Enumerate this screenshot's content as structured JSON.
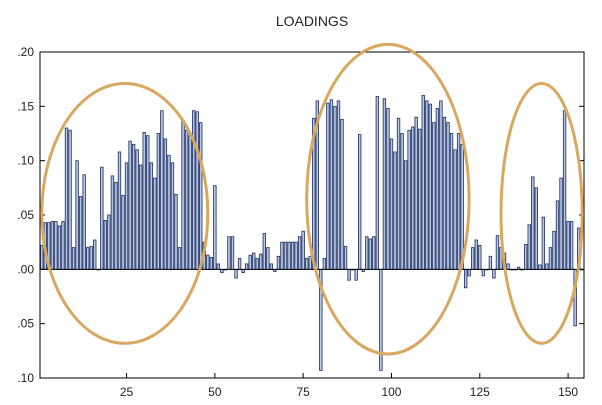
{
  "chart_data": {
    "type": "bar",
    "title": "LOADINGS",
    "xlabel": "",
    "ylabel": "",
    "xlim": [
      1,
      154
    ],
    "ylim": [
      -0.1,
      0.2
    ],
    "xticks": [
      25,
      50,
      75,
      100,
      125,
      150
    ],
    "xtick_labels": [
      "25",
      "50",
      "75",
      "100",
      "125",
      "150"
    ],
    "yticks": [
      -0.1,
      -0.05,
      0.0,
      0.05,
      0.1,
      0.15,
      0.2
    ],
    "ytick_labels": [
      ".10",
      ".05",
      ".00",
      ".05",
      ".10",
      ".15",
      ".20"
    ],
    "grid": false,
    "bar_fill": "#b4c6e7",
    "bar_stroke": "#1f2d5a",
    "highlight_color": "#d9a760",
    "series": [
      {
        "values": [
          0.022,
          0.043,
          0.043,
          0.044,
          0.044,
          0.04,
          0.044,
          0.13,
          0.128,
          0.02,
          0.1,
          0.067,
          0.087,
          0.02,
          0.021,
          0.027,
          0.0,
          0.094,
          0.045,
          0.05,
          0.086,
          0.08,
          0.108,
          0.068,
          0.098,
          0.118,
          0.115,
          0.11,
          0.096,
          0.126,
          0.123,
          0.098,
          0.084,
          0.125,
          0.146,
          0.12,
          0.105,
          0.098,
          0.069,
          0.02,
          0.137,
          0.128,
          0.123,
          0.146,
          0.145,
          0.135,
          0.025,
          0.013,
          0.011,
          0.077,
          0.005,
          -0.003,
          0.0,
          0.03,
          0.03,
          -0.008,
          0.01,
          -0.003,
          0.005,
          0.013,
          0.015,
          0.01,
          0.014,
          0.033,
          0.02,
          0.005,
          -0.002,
          0.012,
          0.025,
          0.025,
          0.025,
          0.025,
          0.025,
          0.03,
          0.035,
          0.01,
          0.012,
          0.139,
          0.155,
          -0.093,
          0.01,
          0.153,
          0.156,
          0.15,
          0.155,
          0.138,
          0.021,
          -0.01,
          0.0,
          -0.01,
          0.124,
          -0.002,
          0.03,
          0.028,
          0.03,
          0.159,
          -0.093,
          0.157,
          0.148,
          0.12,
          0.108,
          0.139,
          0.125,
          0.1,
          0.128,
          0.131,
          0.14,
          0.129,
          0.16,
          0.155,
          0.152,
          0.135,
          0.148,
          0.155,
          0.14,
          0.135,
          0.125,
          0.11,
          0.125,
          0.115,
          -0.017,
          -0.006,
          0.02,
          0.027,
          0.022,
          -0.006,
          0.0,
          0.012,
          -0.008,
          0.031,
          0.02,
          0.015,
          0.005,
          0.0,
          0.0,
          0.002,
          0.0,
          0.023,
          0.041,
          0.085,
          0.075,
          0.004,
          0.048,
          0.005,
          0.02,
          0.035,
          0.063,
          0.084,
          0.146,
          0.044,
          0.044,
          -0.052,
          0.038,
          0.0
        ]
      }
    ],
    "highlight_ellipses": [
      {
        "x_range": [
          1,
          48
        ],
        "y_range": [
          -0.068,
          0.171
        ]
      },
      {
        "x_range": [
          76,
          122
        ],
        "y_range": [
          -0.078,
          0.207
        ]
      },
      {
        "x_range": [
          131,
          154
        ],
        "y_range": [
          -0.068,
          0.171
        ]
      }
    ]
  }
}
